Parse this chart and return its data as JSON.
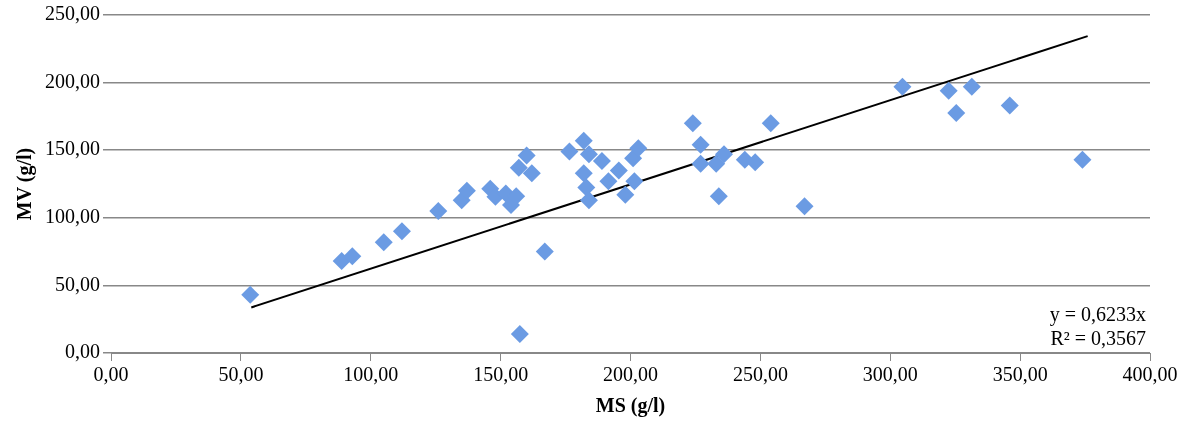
{
  "chart_data": {
    "type": "scatter",
    "xlabel": "MS (g/l)",
    "ylabel": "MV (g/l)",
    "annotations": [
      "y = 0,6233x",
      "R² = 0,3567"
    ],
    "series": [
      {
        "color": "#6b9be3",
        "x": [
          53.6,
          88.8,
          92.9,
          105,
          112,
          126,
          135,
          137,
          146,
          148,
          152,
          154,
          156,
          157.4,
          167,
          157,
          160,
          162,
          224,
          254,
          176.5,
          182,
          184,
          189,
          182,
          183,
          184,
          191.5,
          195.5,
          198,
          201,
          203,
          201.5,
          227,
          227,
          233,
          236,
          244,
          248,
          234,
          267,
          304.7,
          322.5,
          331.4,
          325.4,
          346,
          374
        ],
        "values": [
          43,
          68,
          71.5,
          82,
          90,
          105,
          113,
          120,
          121.5,
          115.5,
          118,
          109.5,
          116,
          14,
          75,
          137,
          146,
          133,
          170,
          170,
          149,
          157,
          147,
          142,
          133,
          122.5,
          113,
          127,
          135,
          117,
          144,
          151.5,
          127,
          154,
          140,
          140,
          147,
          143,
          141,
          116,
          108.5,
          197,
          194,
          197,
          177.5,
          183,
          143
        ]
      },
      {
        "type": "line",
        "color": "#000000",
        "marker": "none",
        "x": [
          54,
          376
        ],
        "values": [
          33.7,
          234.4
        ]
      }
    ],
    "xlim": [
      0,
      400
    ],
    "ylim": [
      0,
      250
    ],
    "xticks": [
      {
        "value": 0,
        "label": "0,00"
      },
      {
        "value": 50,
        "label": "50,00"
      },
      {
        "value": 100,
        "label": "100,00"
      },
      {
        "value": 150,
        "label": "150,00"
      },
      {
        "value": 200,
        "label": "200,00"
      },
      {
        "value": 250,
        "label": "250,00"
      },
      {
        "value": 300,
        "label": "300,00"
      },
      {
        "value": 350,
        "label": "350,00"
      },
      {
        "value": 400,
        "label": "400,00"
      }
    ],
    "yticks": [
      {
        "value": 0,
        "label": "0,00"
      },
      {
        "value": 50,
        "label": "50,00"
      },
      {
        "value": 100,
        "label": "100,00"
      },
      {
        "value": 150,
        "label": "150,00"
      },
      {
        "value": 200,
        "label": "200,00"
      },
      {
        "value": 250,
        "label": "250,00"
      }
    ],
    "grid": "y",
    "legend": false,
    "marker": "diamond"
  }
}
